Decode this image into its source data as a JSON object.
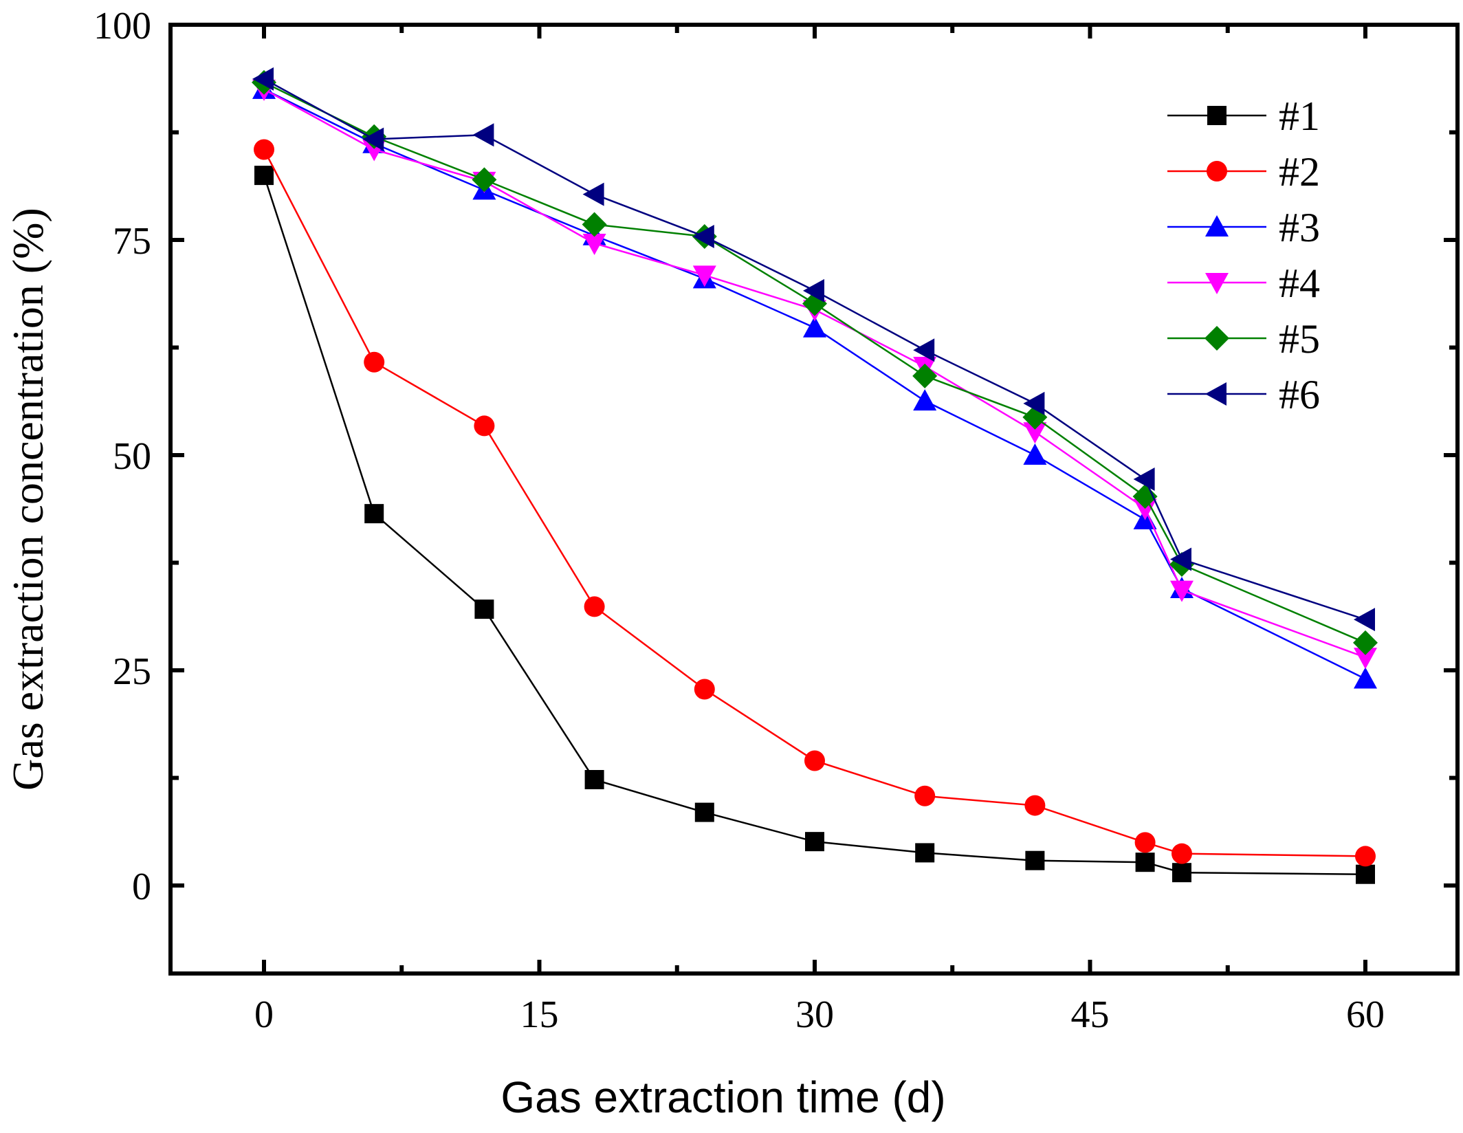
{
  "chart_data": {
    "type": "line",
    "title": "",
    "xlabel": "Gas extraction time  (d)",
    "ylabel": "Gas extraction concentration  (%)",
    "xlim": [
      -5,
      65
    ],
    "ylim": [
      -10,
      100
    ],
    "xticks": [
      0,
      15,
      30,
      45,
      60
    ],
    "yticks": [
      0,
      25,
      50,
      75,
      100
    ],
    "x": [
      0,
      6,
      12,
      18,
      24,
      30,
      36,
      42,
      48,
      50,
      60
    ],
    "legend_position": "top-right",
    "series": [
      {
        "name": "#1",
        "color": "#000000",
        "marker": "square",
        "values": [
          82.5,
          43.2,
          32.1,
          12.3,
          8.5,
          5.1,
          3.8,
          2.9,
          2.7,
          1.5,
          1.3
        ]
      },
      {
        "name": "#2",
        "color": "#ff0000",
        "marker": "circle",
        "values": [
          85.5,
          60.8,
          53.4,
          32.4,
          22.8,
          14.5,
          10.4,
          9.3,
          5.0,
          3.7,
          3.4
        ]
      },
      {
        "name": "#3",
        "color": "#0000ff",
        "marker": "triangle-up",
        "values": [
          92.5,
          86.2,
          80.8,
          75.5,
          70.5,
          64.8,
          56.3,
          50.0,
          42.5,
          34.5,
          24.0
        ]
      },
      {
        "name": "#4",
        "color": "#ff00ff",
        "marker": "triangle-down",
        "values": [
          92.5,
          85.5,
          81.8,
          74.6,
          70.9,
          66.9,
          60.3,
          52.7,
          43.8,
          34.3,
          26.5
        ]
      },
      {
        "name": "#5",
        "color": "#008000",
        "marker": "diamond",
        "values": [
          93.3,
          87.0,
          82.0,
          76.8,
          75.4,
          67.6,
          59.2,
          54.4,
          45.2,
          37.3,
          28.2
        ]
      },
      {
        "name": "#6",
        "color": "#000080",
        "marker": "triangle-left",
        "values": [
          93.7,
          86.7,
          87.2,
          80.3,
          75.4,
          69.1,
          62.2,
          56.0,
          47.2,
          37.9,
          30.9
        ]
      }
    ]
  }
}
